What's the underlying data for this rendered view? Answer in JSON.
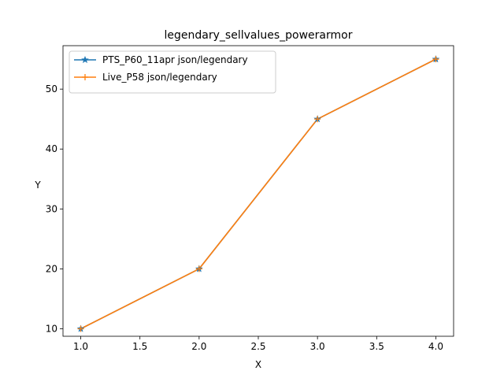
{
  "chart_data": {
    "type": "line",
    "title": "legendary_sellvalues_powerarmor",
    "xlabel": "X",
    "ylabel": "Y",
    "xlim": [
      0.85,
      4.15
    ],
    "ylim": [
      8.75,
      57.25
    ],
    "xticks": [
      1.0,
      1.5,
      2.0,
      2.5,
      3.0,
      3.5,
      4.0
    ],
    "xtick_labels": [
      "1.0",
      "1.5",
      "2.0",
      "2.5",
      "3.0",
      "3.5",
      "4.0"
    ],
    "yticks": [
      10,
      20,
      30,
      40,
      50
    ],
    "ytick_labels": [
      "10",
      "20",
      "30",
      "40",
      "50"
    ],
    "grid": false,
    "legend_position": "top-left",
    "series": [
      {
        "name": "PTS_P60_11apr json/legendary",
        "color": "#1f77b4",
        "marker": "star",
        "x": [
          1,
          2,
          3,
          4
        ],
        "y": [
          10,
          20,
          45,
          55
        ]
      },
      {
        "name": "Live_P58 json/legendary",
        "color": "#ff7f0e",
        "marker": "plus",
        "x": [
          1,
          2,
          3,
          4
        ],
        "y": [
          10,
          20,
          45,
          55
        ]
      }
    ]
  }
}
